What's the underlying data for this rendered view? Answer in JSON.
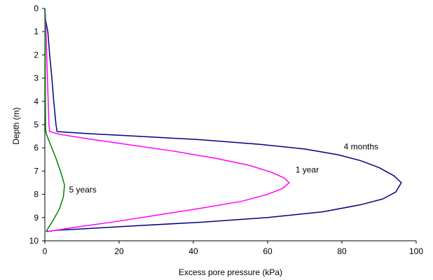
{
  "chart_data": {
    "type": "line",
    "title": "",
    "xlabel": "Excess pore pressure (kPa)",
    "ylabel": "Depth (m)",
    "xlim": [
      0,
      100
    ],
    "ylim": [
      10,
      0
    ],
    "x_ticks": [
      0,
      20,
      40,
      60,
      80,
      100
    ],
    "y_ticks": [
      0,
      1,
      2,
      3,
      4,
      5,
      6,
      7,
      8,
      9,
      10
    ],
    "grid": false,
    "legend": "none",
    "series": [
      {
        "label": "4 months",
        "color": "#000080",
        "points": [
          [
            0,
            0
          ],
          [
            0.2,
            0.5
          ],
          [
            0.8,
            1
          ],
          [
            1.3,
            2
          ],
          [
            1.9,
            3
          ],
          [
            2.4,
            4
          ],
          [
            3.0,
            5.0
          ],
          [
            3.3,
            5.3
          ],
          [
            13,
            5.4
          ],
          [
            25,
            5.5
          ],
          [
            42,
            5.65
          ],
          [
            58,
            5.85
          ],
          [
            70,
            6.05
          ],
          [
            79,
            6.3
          ],
          [
            85,
            6.55
          ],
          [
            90,
            6.85
          ],
          [
            94,
            7.2
          ],
          [
            96,
            7.5
          ],
          [
            94.5,
            7.9
          ],
          [
            91,
            8.2
          ],
          [
            85,
            8.45
          ],
          [
            75,
            8.75
          ],
          [
            60,
            9.0
          ],
          [
            42,
            9.2
          ],
          [
            25,
            9.35
          ],
          [
            12,
            9.47
          ],
          [
            3,
            9.55
          ],
          [
            0.5,
            9.6
          ]
        ],
        "annotation": {
          "text": "4 months",
          "x": 80.5,
          "y": 5.95
        }
      },
      {
        "label": "1 year",
        "color": "#ff00ff",
        "points": [
          [
            0,
            0
          ],
          [
            0.3,
            1
          ],
          [
            0.5,
            2
          ],
          [
            0.7,
            3
          ],
          [
            0.9,
            4
          ],
          [
            1.1,
            5.0
          ],
          [
            1.3,
            5.3
          ],
          [
            4,
            5.42
          ],
          [
            12,
            5.62
          ],
          [
            22,
            5.85
          ],
          [
            35,
            6.15
          ],
          [
            46,
            6.45
          ],
          [
            55,
            6.75
          ],
          [
            61,
            7.05
          ],
          [
            64.5,
            7.3
          ],
          [
            65.8,
            7.5
          ],
          [
            64,
            7.75
          ],
          [
            60,
            8.0
          ],
          [
            53,
            8.3
          ],
          [
            42,
            8.6
          ],
          [
            30,
            8.9
          ],
          [
            18,
            9.2
          ],
          [
            8,
            9.42
          ],
          [
            0.8,
            9.6
          ]
        ],
        "annotation": {
          "text": "1 year",
          "x": 67.5,
          "y": 6.95
        }
      },
      {
        "label": "5 years",
        "color": "#008000",
        "points": [
          [
            0,
            0
          ],
          [
            0.1,
            2
          ],
          [
            0.15,
            4
          ],
          [
            0.2,
            5.2
          ],
          [
            0.4,
            5.4
          ],
          [
            1.5,
            5.85
          ],
          [
            3,
            6.45
          ],
          [
            4.4,
            7.1
          ],
          [
            5.3,
            7.6
          ],
          [
            5.0,
            8.1
          ],
          [
            4.0,
            8.6
          ],
          [
            2.3,
            9.1
          ],
          [
            0.3,
            9.6
          ]
        ],
        "annotation": {
          "text": "5 years",
          "x": 6.5,
          "y": 7.8
        }
      }
    ]
  }
}
